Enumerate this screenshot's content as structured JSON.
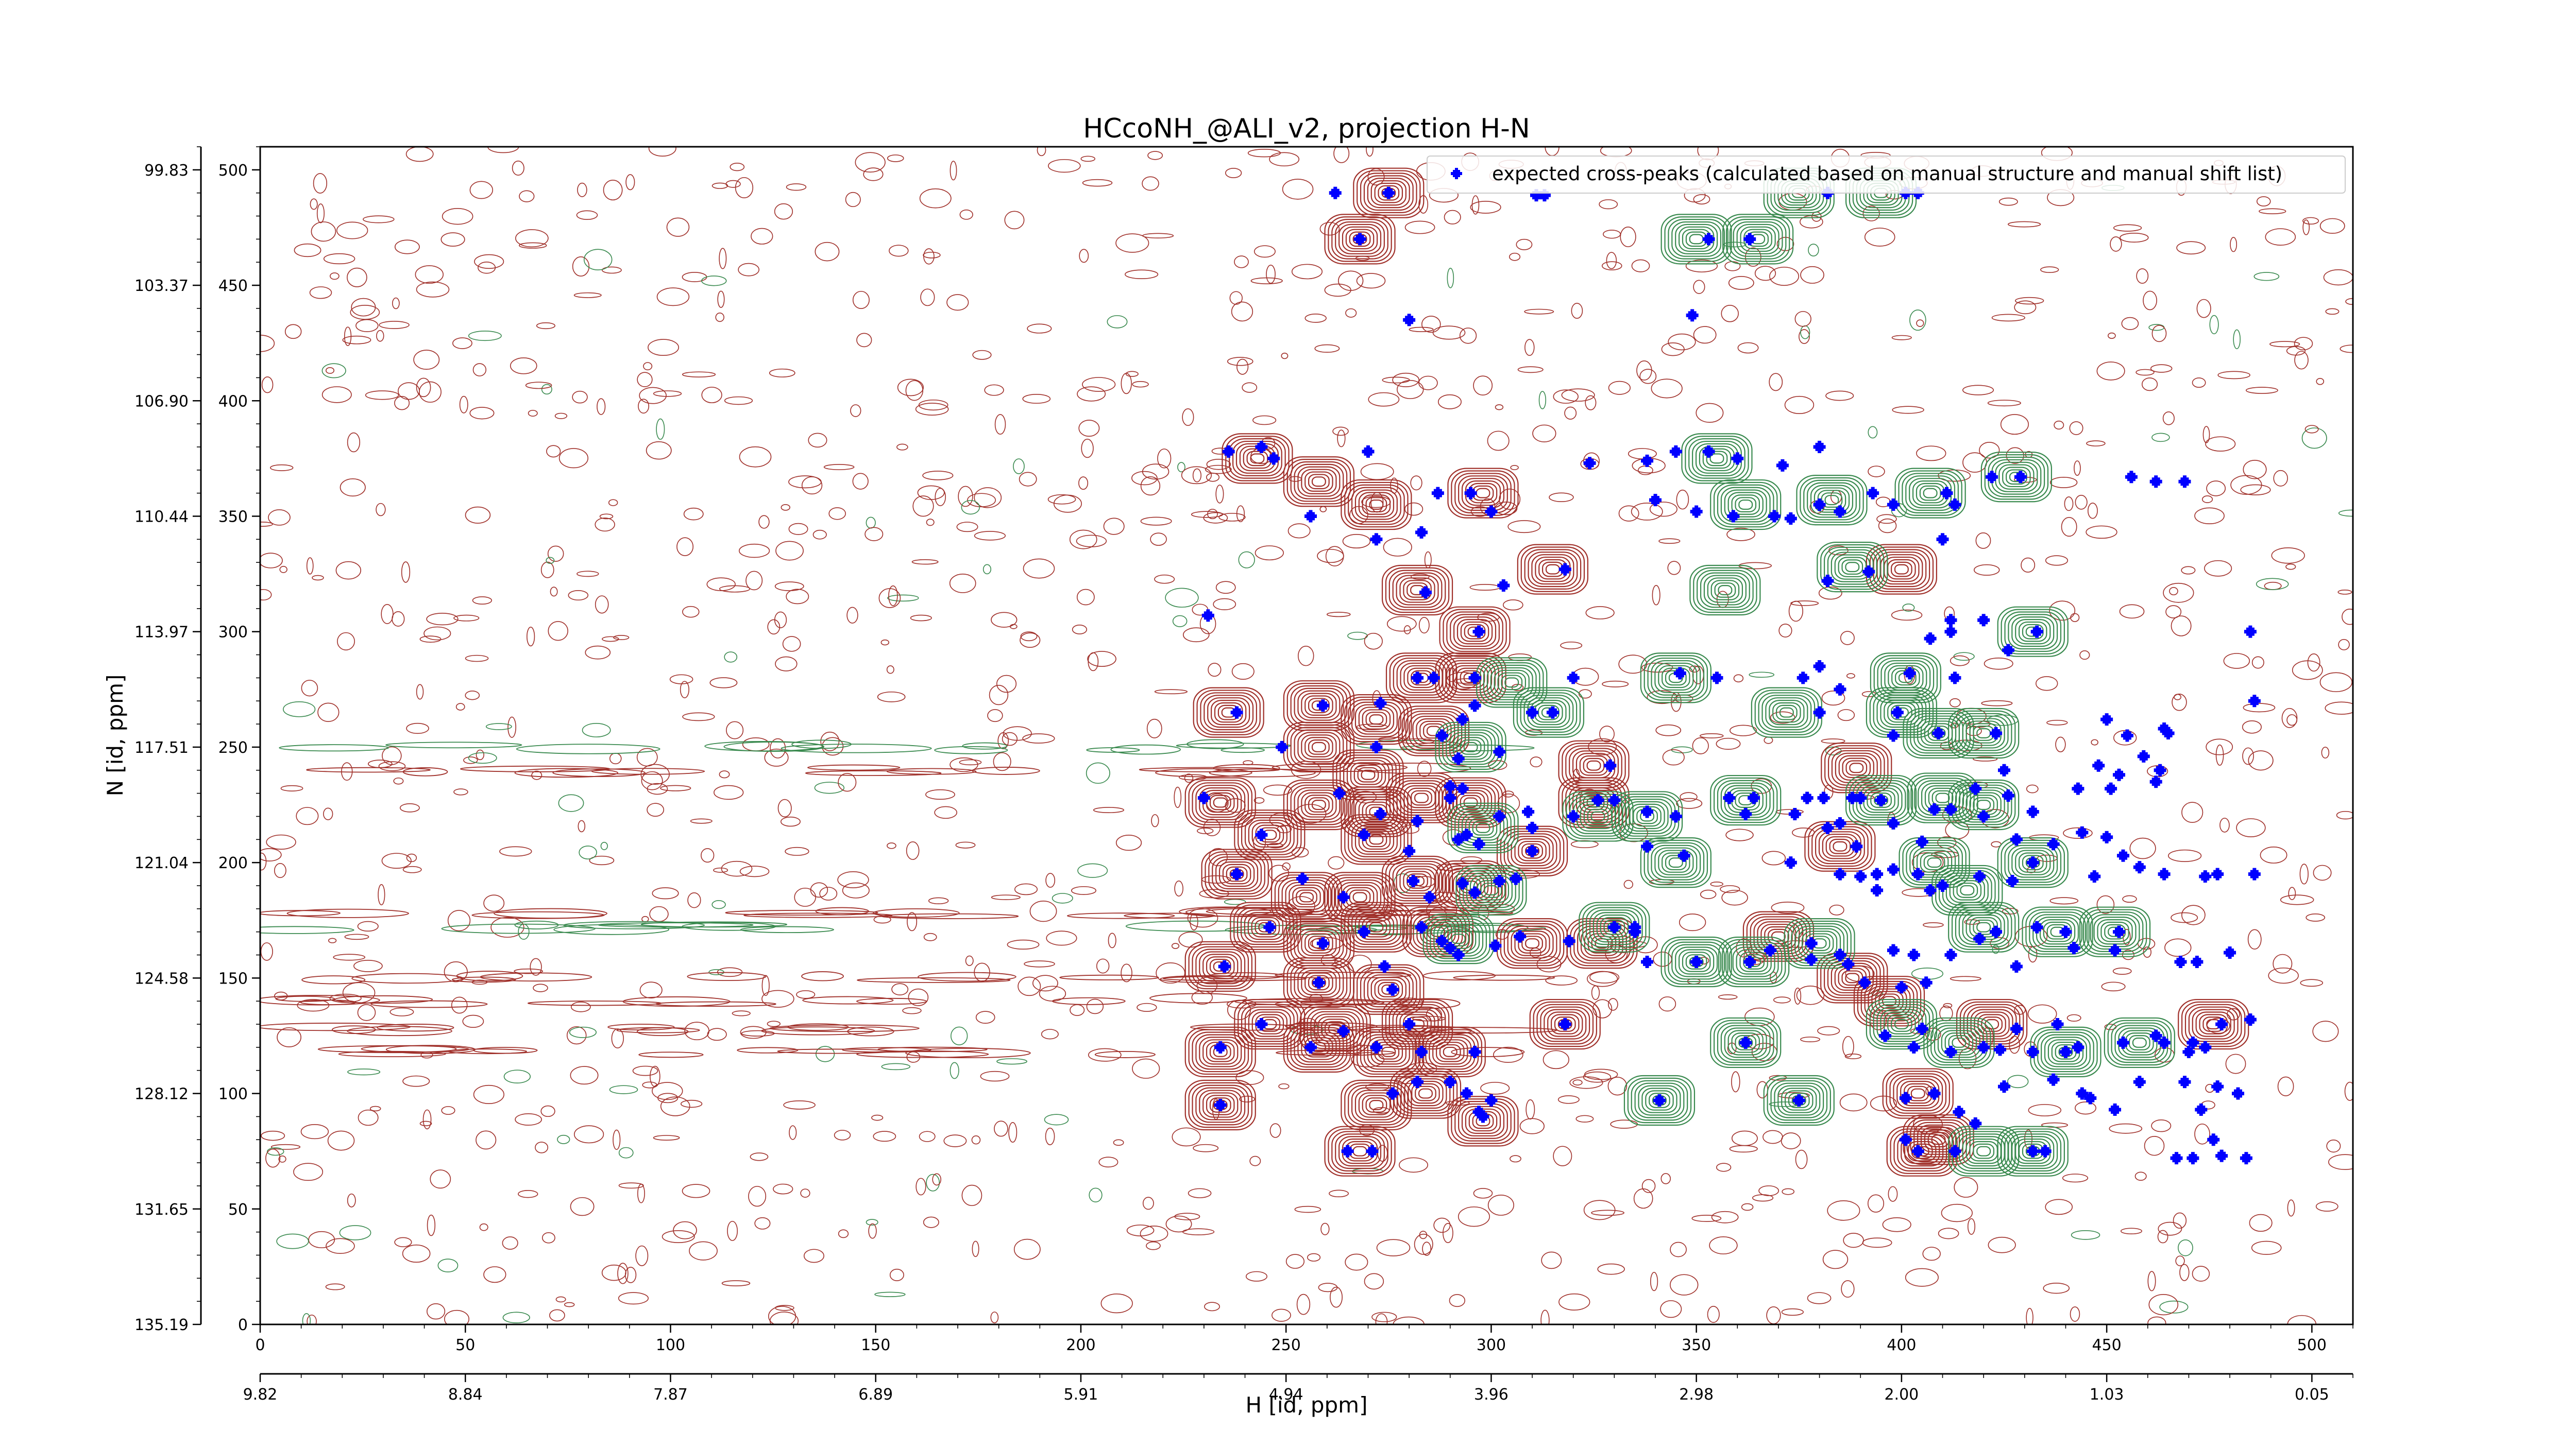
{
  "chart_data": {
    "type": "scatter",
    "title": "HCcoNH_@ALI_v2, projection H-N",
    "xlabel": "H [id, ppm]",
    "ylabel": "N [id, ppm]",
    "xlim": [
      0,
      510
    ],
    "ylim": [
      0,
      510
    ],
    "x_ticks_index": [
      "0",
      "50",
      "100",
      "150",
      "200",
      "250",
      "300",
      "350",
      "400",
      "450",
      "500"
    ],
    "x_ticks_ppm": [
      "9.82",
      "8.84",
      "7.87",
      "6.89",
      "5.91",
      "4.94",
      "3.96",
      "2.98",
      "2.00",
      "1.03",
      "0.05"
    ],
    "y_ticks_index": [
      "0",
      "50",
      "100",
      "150",
      "200",
      "250",
      "300",
      "350",
      "400",
      "450",
      "500"
    ],
    "y_ticks_ppm": [
      "135.19",
      "131.65",
      "128.12",
      "124.58",
      "121.04",
      "117.51",
      "113.97",
      "110.44",
      "106.90",
      "103.37",
      "99.83"
    ],
    "legend": {
      "label": "expected cross-peaks (calculated based on manual structure and manual shift list)",
      "placement": "top-right"
    },
    "colors": {
      "expected_marker": "#0000ff",
      "positive_contour": "#a0302a",
      "negative_contour": "#3a8a4f",
      "axes": "#000000"
    },
    "contour_peaks_positive": [
      [
        275,
        490
      ],
      [
        268,
        470
      ],
      [
        243,
        375
      ],
      [
        258,
        365
      ],
      [
        272,
        355
      ],
      [
        298,
        360
      ],
      [
        282,
        318
      ],
      [
        315,
        327
      ],
      [
        296,
        300
      ],
      [
        283,
        280
      ],
      [
        295,
        280
      ],
      [
        236,
        265
      ],
      [
        258,
        268
      ],
      [
        272,
        262
      ],
      [
        286,
        257
      ],
      [
        258,
        250
      ],
      [
        270,
        238
      ],
      [
        283,
        228
      ],
      [
        234,
        226
      ],
      [
        258,
        225
      ],
      [
        272,
        222
      ],
      [
        295,
        226
      ],
      [
        325,
        242
      ],
      [
        325,
        226
      ],
      [
        246,
        212
      ],
      [
        272,
        210
      ],
      [
        310,
        205
      ],
      [
        238,
        195
      ],
      [
        255,
        185
      ],
      [
        268,
        185
      ],
      [
        282,
        192
      ],
      [
        295,
        190
      ],
      [
        245,
        172
      ],
      [
        258,
        165
      ],
      [
        272,
        172
      ],
      [
        287,
        170
      ],
      [
        310,
        165
      ],
      [
        327,
        165
      ],
      [
        234,
        155
      ],
      [
        258,
        148
      ],
      [
        275,
        145
      ],
      [
        246,
        130
      ],
      [
        262,
        128
      ],
      [
        282,
        130
      ],
      [
        234,
        118
      ],
      [
        258,
        120
      ],
      [
        275,
        118
      ],
      [
        290,
        118
      ],
      [
        318,
        130
      ],
      [
        284,
        100
      ],
      [
        272,
        95
      ],
      [
        298,
        88
      ],
      [
        234,
        95
      ],
      [
        268,
        75
      ],
      [
        389,
        241
      ],
      [
        385,
        207
      ],
      [
        397,
        140
      ],
      [
        404,
        100
      ],
      [
        405,
        75
      ],
      [
        400,
        327
      ],
      [
        422,
        130
      ],
      [
        409,
        80
      ],
      [
        476,
        130
      ],
      [
        388,
        150
      ],
      [
        370,
        168
      ]
    ],
    "contour_peaks_negative": [
      [
        375,
        490
      ],
      [
        395,
        490
      ],
      [
        350,
        470
      ],
      [
        365,
        470
      ],
      [
        355,
        375
      ],
      [
        362,
        355
      ],
      [
        383,
        357
      ],
      [
        407,
        360
      ],
      [
        428,
        367
      ],
      [
        357,
        318
      ],
      [
        345,
        280
      ],
      [
        372,
        265
      ],
      [
        388,
        328
      ],
      [
        401,
        280
      ],
      [
        409,
        256
      ],
      [
        432,
        300
      ],
      [
        400,
        265
      ],
      [
        420,
        256
      ],
      [
        305,
        278
      ],
      [
        314,
        265
      ],
      [
        295,
        250
      ],
      [
        298,
        215
      ],
      [
        326,
        220
      ],
      [
        338,
        220
      ],
      [
        362,
        227
      ],
      [
        395,
        227
      ],
      [
        410,
        228
      ],
      [
        420,
        225
      ],
      [
        345,
        200
      ],
      [
        408,
        200
      ],
      [
        432,
        200
      ],
      [
        300,
        188
      ],
      [
        292,
        167
      ],
      [
        330,
        172
      ],
      [
        350,
        157
      ],
      [
        364,
        157
      ],
      [
        380,
        165
      ],
      [
        420,
        172
      ],
      [
        438,
        170
      ],
      [
        452,
        170
      ],
      [
        400,
        130
      ],
      [
        414,
        122
      ],
      [
        440,
        118
      ],
      [
        458,
        122
      ],
      [
        362,
        122
      ],
      [
        341,
        97
      ],
      [
        375,
        97
      ],
      [
        420,
        75
      ],
      [
        432,
        75
      ],
      [
        416,
        188
      ]
    ],
    "expected_crosspeaks": [
      [
        275,
        490
      ],
      [
        262,
        490
      ],
      [
        311,
        489
      ],
      [
        313,
        489
      ],
      [
        382,
        490
      ],
      [
        401,
        490
      ],
      [
        404,
        490
      ],
      [
        268,
        470
      ],
      [
        353,
        470
      ],
      [
        363,
        470
      ],
      [
        280,
        435
      ],
      [
        349,
        437
      ],
      [
        236,
        378
      ],
      [
        247,
        375
      ],
      [
        270,
        378
      ],
      [
        287,
        360
      ],
      [
        244,
        380
      ],
      [
        324,
        373
      ],
      [
        338,
        374
      ],
      [
        345,
        378
      ],
      [
        360,
        375
      ],
      [
        353,
        378
      ],
      [
        371,
        372
      ],
      [
        380,
        380
      ],
      [
        398,
        355
      ],
      [
        411,
        360
      ],
      [
        422,
        367
      ],
      [
        429,
        367
      ],
      [
        456,
        367
      ],
      [
        462,
        365
      ],
      [
        469,
        365
      ],
      [
        256,
        350
      ],
      [
        283,
        343
      ],
      [
        295,
        360
      ],
      [
        300,
        352
      ],
      [
        393,
        360
      ],
      [
        413,
        355
      ],
      [
        410,
        340
      ],
      [
        340,
        357
      ],
      [
        350,
        352
      ],
      [
        359,
        350
      ],
      [
        369,
        350
      ],
      [
        373,
        349
      ],
      [
        380,
        355
      ],
      [
        385,
        352
      ],
      [
        318,
        327
      ],
      [
        382,
        322
      ],
      [
        284,
        317
      ],
      [
        303,
        320
      ],
      [
        392,
        326
      ],
      [
        272,
        340
      ],
      [
        412,
        305
      ],
      [
        420,
        305
      ],
      [
        433,
        300
      ],
      [
        297,
        300
      ],
      [
        231,
        307
      ],
      [
        407,
        297
      ],
      [
        412,
        300
      ],
      [
        426,
        292
      ],
      [
        485,
        300
      ],
      [
        380,
        285
      ],
      [
        376,
        280
      ],
      [
        402,
        282
      ],
      [
        413,
        280
      ],
      [
        346,
        282
      ],
      [
        355,
        280
      ],
      [
        385,
        275
      ],
      [
        282,
        280
      ],
      [
        286,
        280
      ],
      [
        296,
        280
      ],
      [
        320,
        280
      ],
      [
        296,
        268
      ],
      [
        293,
        262
      ],
      [
        273,
        269
      ],
      [
        238,
        265
      ],
      [
        259,
        268
      ],
      [
        380,
        265
      ],
      [
        399,
        265
      ],
      [
        398,
        255
      ],
      [
        409,
        256
      ],
      [
        423,
        256
      ],
      [
        455,
        255
      ],
      [
        486,
        270
      ],
      [
        465,
        256
      ],
      [
        464,
        258
      ],
      [
        249,
        250
      ],
      [
        272,
        250
      ],
      [
        288,
        255
      ],
      [
        310,
        265
      ],
      [
        315,
        265
      ],
      [
        329,
        242
      ],
      [
        292,
        245
      ],
      [
        302,
        248
      ],
      [
        425,
        240
      ],
      [
        448,
        242
      ],
      [
        453,
        238
      ],
      [
        462,
        235
      ],
      [
        463,
        240
      ],
      [
        451,
        232
      ],
      [
        230,
        228
      ],
      [
        263,
        230
      ],
      [
        273,
        221
      ],
      [
        290,
        228
      ],
      [
        293,
        232
      ],
      [
        302,
        220
      ],
      [
        309,
        222
      ],
      [
        290,
        233
      ],
      [
        282,
        218
      ],
      [
        326,
        227
      ],
      [
        330,
        227
      ],
      [
        358,
        228
      ],
      [
        364,
        228
      ],
      [
        377,
        228
      ],
      [
        381,
        228
      ],
      [
        390,
        228
      ],
      [
        388,
        228
      ],
      [
        395,
        227
      ],
      [
        408,
        223
      ],
      [
        412,
        223
      ],
      [
        426,
        229
      ],
      [
        420,
        220
      ],
      [
        418,
        232
      ],
      [
        432,
        222
      ],
      [
        443,
        232
      ],
      [
        345,
        220
      ],
      [
        338,
        222
      ],
      [
        362,
        221
      ],
      [
        374,
        221
      ],
      [
        385,
        217
      ],
      [
        382,
        215
      ],
      [
        389,
        207
      ],
      [
        398,
        217
      ],
      [
        405,
        209
      ],
      [
        428,
        210
      ],
      [
        437,
        208
      ],
      [
        444,
        213
      ],
      [
        450,
        211
      ],
      [
        244,
        212
      ],
      [
        269,
        212
      ],
      [
        280,
        205
      ],
      [
        294,
        212
      ],
      [
        310,
        205
      ],
      [
        347,
        203
      ],
      [
        390,
        194
      ],
      [
        394,
        195
      ],
      [
        398,
        197
      ],
      [
        404,
        195
      ],
      [
        407,
        188
      ],
      [
        410,
        190
      ],
      [
        419,
        194
      ],
      [
        427,
        192
      ],
      [
        432,
        200
      ],
      [
        394,
        188
      ],
      [
        385,
        195
      ],
      [
        373,
        200
      ],
      [
        447,
        194
      ],
      [
        454,
        203
      ],
      [
        458,
        198
      ],
      [
        464,
        195
      ],
      [
        474,
        194
      ],
      [
        477,
        195
      ],
      [
        486,
        195
      ],
      [
        238,
        195
      ],
      [
        254,
        193
      ],
      [
        264,
        185
      ],
      [
        281,
        192
      ],
      [
        285,
        185
      ],
      [
        293,
        191
      ],
      [
        302,
        192
      ],
      [
        296,
        187
      ],
      [
        306,
        193
      ],
      [
        246,
        172
      ],
      [
        269,
        170
      ],
      [
        283,
        172
      ],
      [
        288,
        166
      ],
      [
        292,
        160
      ],
      [
        301,
        164
      ],
      [
        307,
        168
      ],
      [
        319,
        166
      ],
      [
        330,
        172
      ],
      [
        335,
        170
      ],
      [
        338,
        157
      ],
      [
        363,
        157
      ],
      [
        378,
        165
      ],
      [
        385,
        160
      ],
      [
        398,
        162
      ],
      [
        403,
        160
      ],
      [
        412,
        160
      ],
      [
        419,
        167
      ],
      [
        423,
        170
      ],
      [
        433,
        172
      ],
      [
        440,
        170
      ],
      [
        453,
        170
      ],
      [
        442,
        163
      ],
      [
        452,
        162
      ],
      [
        468,
        157
      ],
      [
        472,
        157
      ],
      [
        480,
        161
      ],
      [
        235,
        155
      ],
      [
        259,
        165
      ],
      [
        274,
        155
      ],
      [
        258,
        148
      ],
      [
        276,
        145
      ],
      [
        290,
        163
      ],
      [
        350,
        157
      ],
      [
        368,
        162
      ],
      [
        378,
        158
      ],
      [
        387,
        156
      ],
      [
        391,
        148
      ],
      [
        400,
        146
      ],
      [
        406,
        148
      ],
      [
        428,
        155
      ],
      [
        244,
        130
      ],
      [
        264,
        127
      ],
      [
        280,
        130
      ],
      [
        318,
        130
      ],
      [
        234,
        120
      ],
      [
        256,
        120
      ],
      [
        272,
        120
      ],
      [
        283,
        118
      ],
      [
        296,
        118
      ],
      [
        335,
        172
      ],
      [
        362,
        122
      ],
      [
        396,
        125
      ],
      [
        403,
        120
      ],
      [
        405,
        128
      ],
      [
        412,
        118
      ],
      [
        420,
        120
      ],
      [
        428,
        128
      ],
      [
        424,
        119
      ],
      [
        432,
        118
      ],
      [
        440,
        118
      ],
      [
        454,
        122
      ],
      [
        464,
        122
      ],
      [
        471,
        122
      ],
      [
        478,
        130
      ],
      [
        485,
        132
      ],
      [
        438,
        130
      ],
      [
        443,
        120
      ],
      [
        462,
        125
      ],
      [
        470,
        118
      ],
      [
        474,
        120
      ],
      [
        425,
        103
      ],
      [
        437,
        106
      ],
      [
        444,
        100
      ],
      [
        446,
        98
      ],
      [
        452,
        93
      ],
      [
        458,
        105
      ],
      [
        469,
        105
      ],
      [
        477,
        103
      ],
      [
        482,
        100
      ],
      [
        473,
        93
      ],
      [
        476,
        80
      ],
      [
        478,
        73
      ],
      [
        467,
        72
      ],
      [
        471,
        72
      ],
      [
        484,
        72
      ],
      [
        234,
        95
      ],
      [
        282,
        105
      ],
      [
        290,
        105
      ],
      [
        294,
        100
      ],
      [
        276,
        100
      ],
      [
        298,
        90
      ],
      [
        341,
        97
      ],
      [
        375,
        97
      ],
      [
        401,
        98
      ],
      [
        408,
        100
      ],
      [
        414,
        92
      ],
      [
        418,
        87
      ],
      [
        401,
        80
      ],
      [
        404,
        75
      ],
      [
        413,
        75
      ],
      [
        432,
        75
      ],
      [
        435,
        75
      ],
      [
        265,
        75
      ],
      [
        271,
        75
      ],
      [
        297,
        92
      ],
      [
        300,
        97
      ],
      [
        292,
        210
      ],
      [
        297,
        208
      ],
      [
        310,
        215
      ],
      [
        320,
        220
      ],
      [
        338,
        207
      ],
      [
        450,
        262
      ],
      [
        459,
        246
      ]
    ]
  }
}
